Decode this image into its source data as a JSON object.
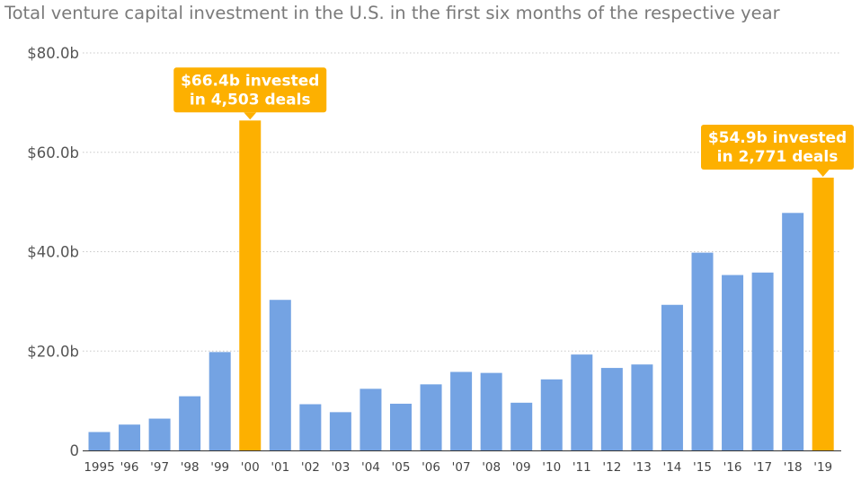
{
  "chart_data": {
    "type": "bar",
    "title": "",
    "subtitle": "Total venture capital investment in the U.S. in the first six months of the respective year",
    "xlabel": "",
    "ylabel": "",
    "ylim": [
      0,
      80
    ],
    "y_ticks": [
      {
        "value": 0,
        "label": "0"
      },
      {
        "value": 20,
        "label": "$20.0b"
      },
      {
        "value": 40,
        "label": "$40.0b"
      },
      {
        "value": 60,
        "label": "$60.0b"
      },
      {
        "value": 80,
        "label": "$80.0b"
      }
    ],
    "grid": true,
    "categories": [
      "1995",
      "'96",
      "'97",
      "'98",
      "'99",
      "'00",
      "'01",
      "'02",
      "'03",
      "'04",
      "'05",
      "'06",
      "'07",
      "'08",
      "'09",
      "'10",
      "'11",
      "'12",
      "'13",
      "'14",
      "'15",
      "'16",
      "'17",
      "'18",
      "'19"
    ],
    "values": [
      3.7,
      5.2,
      6.4,
      10.9,
      19.8,
      66.4,
      30.3,
      9.3,
      7.7,
      12.4,
      9.4,
      13.3,
      15.8,
      15.6,
      9.6,
      14.3,
      19.3,
      16.6,
      17.3,
      29.3,
      39.8,
      35.3,
      35.8,
      47.8,
      54.9
    ],
    "colors": {
      "default": "#74a3e3",
      "highlight": "#fdb000"
    },
    "highlighted": [
      "'00",
      "'19"
    ],
    "annotations": [
      {
        "category": "'00",
        "lines": [
          "$66.4b invested",
          "in 4,503 deals"
        ]
      },
      {
        "category": "'19",
        "lines": [
          "$54.9b invested",
          "in 2,771 deals"
        ]
      }
    ]
  }
}
